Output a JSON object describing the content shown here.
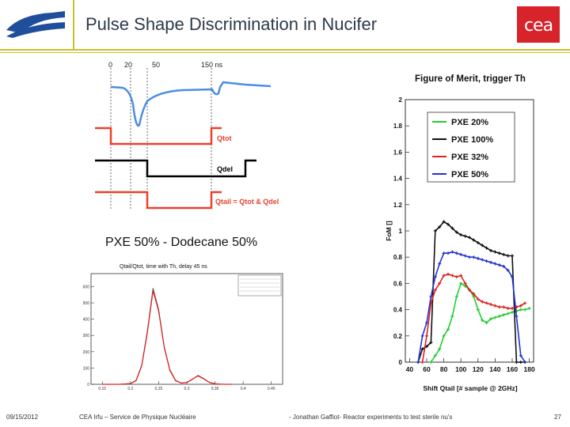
{
  "header": {
    "title": "Pulse Shape Discrimination in Nucifer",
    "logo_text": "cea"
  },
  "pulse_diagram": {
    "time_labels": [
      "0",
      "20",
      "50",
      "150 ns"
    ],
    "q_tot": "Qtot",
    "q_del": "Qdel",
    "q_tail": "Qtail = Qtot & Qdel",
    "colors": {
      "pulse": "#4a8ee0",
      "gate": "#e8412c",
      "delay": "#000000"
    }
  },
  "sub_label": "PXE 50% - Dodecane 50%",
  "chart_data": [
    {
      "type": "line",
      "title": "Qtail/Qtot, time with Th, delay 45 ns",
      "x_ticks": [
        "0.15",
        "0.2",
        "0.25",
        "0.3",
        "0.35",
        "0.4",
        "0.45"
      ],
      "y_ticks": [
        "0",
        "100",
        "200",
        "300",
        "400",
        "500",
        "600"
      ],
      "series": [
        {
          "color": "#555555",
          "x": [
            0.15,
            0.18,
            0.2,
            0.21,
            0.22,
            0.23,
            0.24,
            0.25,
            0.26,
            0.27,
            0.28,
            0.29,
            0.3,
            0.31,
            0.32,
            0.33,
            0.34,
            0.35,
            0.36,
            0.37,
            0.38
          ],
          "y": [
            0,
            0,
            5,
            25,
            120,
            330,
            590,
            460,
            230,
            90,
            25,
            8,
            10,
            30,
            55,
            35,
            12,
            4,
            1,
            0,
            0
          ]
        },
        {
          "color": "#e02020",
          "x": [
            0.15,
            0.18,
            0.2,
            0.21,
            0.22,
            0.23,
            0.24,
            0.25,
            0.26,
            0.27,
            0.28,
            0.29,
            0.3,
            0.31,
            0.32,
            0.33,
            0.34,
            0.35,
            0.36,
            0.37,
            0.38
          ],
          "y": [
            0,
            0,
            4,
            22,
            115,
            320,
            575,
            450,
            225,
            85,
            22,
            8,
            11,
            32,
            52,
            33,
            11,
            3,
            1,
            0,
            0
          ]
        }
      ],
      "xlim": [
        0.13,
        0.47
      ],
      "ylim": [
        0,
        680
      ]
    },
    {
      "type": "line",
      "title": "Figure of Merit, trigger Th",
      "xlabel": "Shift Qtail [# sample @ 2GHz]",
      "ylabel": "FoM []",
      "xlim": [
        35,
        185
      ],
      "ylim": [
        0,
        2
      ],
      "x_ticks": [
        40,
        60,
        80,
        100,
        120,
        140,
        160,
        180
      ],
      "y_ticks": [
        0,
        0.2,
        0.4,
        0.6,
        0.8,
        1,
        1.2,
        1.4,
        1.6,
        1.8,
        2
      ],
      "legend_position": "top-right",
      "series": [
        {
          "name": "PXE 20%",
          "color": "#22cc33",
          "x": [
            65,
            70,
            75,
            80,
            85,
            90,
            95,
            100,
            105,
            110,
            115,
            120,
            125,
            130,
            135,
            140,
            145,
            150,
            155,
            160,
            165,
            170,
            175,
            180
          ],
          "y": [
            0.0,
            0.05,
            0.1,
            0.2,
            0.25,
            0.35,
            0.5,
            0.6,
            0.58,
            0.55,
            0.5,
            0.4,
            0.32,
            0.3,
            0.33,
            0.34,
            0.35,
            0.36,
            0.37,
            0.38,
            0.39,
            0.4,
            0.4,
            0.41
          ]
        },
        {
          "name": "PXE 100%",
          "color": "#111111",
          "x": [
            50,
            55,
            60,
            65,
            70,
            75,
            80,
            85,
            90,
            95,
            100,
            105,
            110,
            115,
            120,
            125,
            130,
            135,
            140,
            145,
            150,
            155,
            160,
            165,
            170,
            175
          ],
          "y": [
            0.0,
            0.1,
            0.12,
            0.15,
            1.0,
            1.03,
            1.07,
            1.05,
            1.02,
            0.99,
            0.97,
            0.96,
            0.95,
            0.93,
            0.91,
            0.89,
            0.87,
            0.85,
            0.84,
            0.83,
            0.82,
            0.81,
            0.81,
            0.0,
            0.0,
            0.0
          ]
        },
        {
          "name": "PXE 32%",
          "color": "#e02020",
          "x": [
            55,
            60,
            65,
            70,
            75,
            80,
            85,
            90,
            95,
            100,
            105,
            110,
            115,
            120,
            125,
            130,
            135,
            140,
            145,
            150,
            155,
            160,
            165,
            170,
            175
          ],
          "y": [
            0.0,
            0.2,
            0.45,
            0.55,
            0.6,
            0.66,
            0.67,
            0.66,
            0.65,
            0.66,
            0.6,
            0.55,
            0.52,
            0.48,
            0.46,
            0.45,
            0.44,
            0.43,
            0.42,
            0.42,
            0.41,
            0.41,
            0.42,
            0.43,
            0.45
          ]
        },
        {
          "name": "PXE 50%",
          "color": "#2233cc",
          "x": [
            50,
            55,
            60,
            65,
            70,
            75,
            80,
            85,
            90,
            95,
            100,
            105,
            110,
            115,
            120,
            125,
            130,
            135,
            140,
            145,
            150,
            155,
            160,
            165,
            170,
            175
          ],
          "y": [
            0.0,
            0.2,
            0.3,
            0.5,
            0.65,
            0.75,
            0.83,
            0.83,
            0.84,
            0.83,
            0.82,
            0.81,
            0.8,
            0.8,
            0.79,
            0.78,
            0.77,
            0.76,
            0.75,
            0.74,
            0.73,
            0.7,
            0.65,
            0.35,
            0.05,
            0.0
          ]
        }
      ]
    }
  ],
  "footer": {
    "date": "09/15/2012",
    "org": "CEA Irfu – Service de Physique Nucléaire",
    "author": "- Jonathan Gaffiot- Reactor experiments to test sterile nu's",
    "page": "27"
  }
}
